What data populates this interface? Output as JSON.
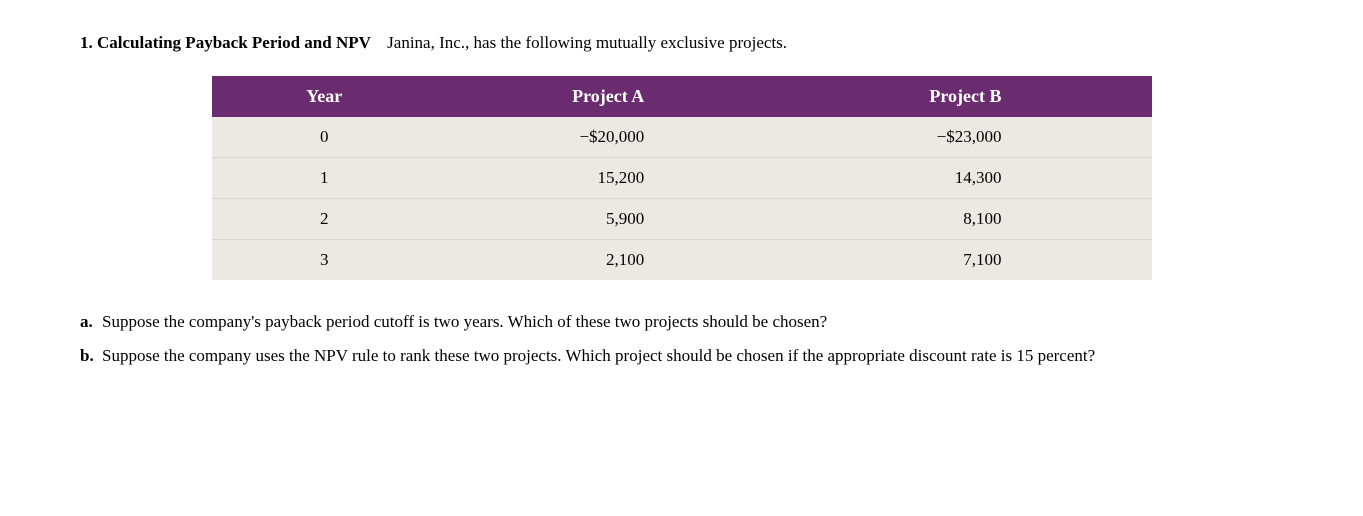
{
  "problem": {
    "number": "1.",
    "title": "Calculating Payback Period and NPV",
    "intro": "Janina, Inc., has the following mutually exclusive projects."
  },
  "table": {
    "columns": [
      "Year",
      "Project A",
      "Project B"
    ],
    "rows": [
      [
        "0",
        "−$20,000",
        "−$23,000"
      ],
      [
        "1",
        "15,200",
        "14,300"
      ],
      [
        "2",
        "5,900",
        "8,100"
      ],
      [
        "3",
        "2,100",
        "7,100"
      ]
    ],
    "header_bg": "#6b2c6f",
    "header_text_color": "#ffffff",
    "row_bg": "#ece9e2",
    "row_border": "#d9d5cc"
  },
  "parts": {
    "a": {
      "label": "a.",
      "text": "Suppose the company's payback period cutoff is two years. Which of these two projects should be chosen?"
    },
    "b": {
      "label": "b.",
      "text": "Suppose the company uses the NPV rule to rank these two projects. Which project should be chosen if the appropriate discount rate is 15 percent?"
    }
  }
}
